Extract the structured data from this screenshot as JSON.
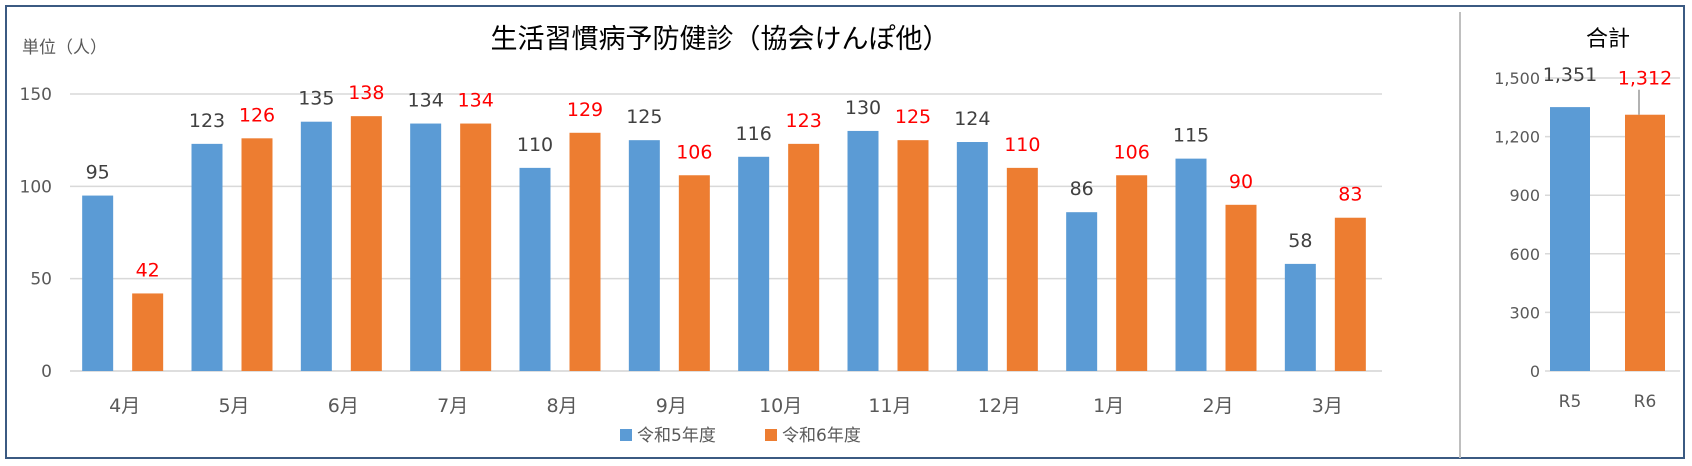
{
  "chart_data": [
    {
      "type": "bar",
      "title": "生活習慣病予防健診（協会けんぽ他）",
      "unit_label": "単位（人）",
      "categories": [
        "4月",
        "5月",
        "6月",
        "7月",
        "8月",
        "9月",
        "10月",
        "11月",
        "12月",
        "1月",
        "2月",
        "3月"
      ],
      "series": [
        {
          "name": "令和5年度",
          "color": "#5b9bd5",
          "label_color": "#404040",
          "values": [
            95,
            123,
            135,
            134,
            110,
            125,
            116,
            130,
            124,
            86,
            115,
            58
          ]
        },
        {
          "name": "令和6年度",
          "color": "#ed7d31",
          "label_color": "#ff0000",
          "values": [
            42,
            126,
            138,
            134,
            129,
            106,
            123,
            125,
            110,
            106,
            90,
            83
          ]
        }
      ],
      "yticks": [
        "0",
        "50",
        "100",
        "150"
      ],
      "ylim": [
        0,
        150
      ],
      "grid": true,
      "legend": "bottom"
    },
    {
      "type": "bar",
      "title": "合計",
      "categories": [
        "R5",
        "R6"
      ],
      "values": [
        1351,
        1312
      ],
      "value_labels": [
        "1,351",
        "1,312"
      ],
      "colors": [
        "#5b9bd5",
        "#ed7d31"
      ],
      "label_colors": [
        "#404040",
        "#ff0000"
      ],
      "yticks": [
        "0",
        "300",
        "600",
        "900",
        "1,200",
        "1,500"
      ],
      "ylim": [
        0,
        1500
      ],
      "grid": true
    }
  ]
}
